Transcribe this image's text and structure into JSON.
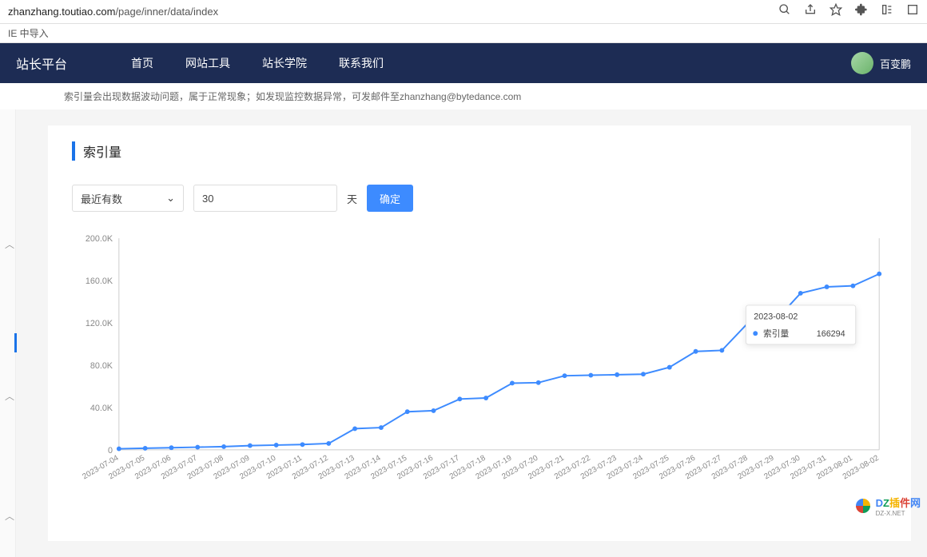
{
  "browser": {
    "url_host": "zhanzhang.toutiao.com",
    "url_path": "/page/inner/data/index"
  },
  "bookmark": {
    "label": "IE 中导入"
  },
  "nav": {
    "platform": "站长平台",
    "items": [
      "首页",
      "网站工具",
      "站长学院",
      "联系我们"
    ],
    "username": "百变鹏"
  },
  "info": {
    "text": "索引量会出现数据波动问题，属于正常现象；如发现监控数据异常，可发邮件至",
    "email": "zhanzhang@bytedance.com"
  },
  "section": {
    "title": "索引量"
  },
  "controls": {
    "select_label": "最近有数",
    "input_value": "30",
    "unit": "天",
    "confirm": "确定"
  },
  "chart": {
    "type": "line",
    "series_name": "索引量",
    "line_color": "#3d8bff",
    "background_color": "#ffffff",
    "axis_color": "#cccccc",
    "label_color": "#888888",
    "label_fontsize": 11,
    "ylim": [
      0,
      200000
    ],
    "ytick_step": 40000,
    "yticks": [
      "0",
      "40.0K",
      "80.0K",
      "120.0K",
      "160.0K",
      "200.0K"
    ],
    "marker": "circle",
    "marker_size": 3,
    "line_width": 2,
    "x_labels": [
      "2023-07-04",
      "2023-07-05",
      "2023-07-06",
      "2023-07-07",
      "2023-07-08",
      "2023-07-09",
      "2023-07-10",
      "2023-07-11",
      "2023-07-12",
      "2023-07-13",
      "2023-07-14",
      "2023-07-15",
      "2023-07-16",
      "2023-07-17",
      "2023-07-18",
      "2023-07-19",
      "2023-07-20",
      "2023-07-21",
      "2023-07-22",
      "2023-07-23",
      "2023-07-24",
      "2023-07-25",
      "2023-07-26",
      "2023-07-27",
      "2023-07-28",
      "2023-07-29",
      "2023-07-30",
      "2023-07-31",
      "2023-08-01",
      "2023-08-02"
    ],
    "values": [
      1000,
      1500,
      2000,
      2500,
      3000,
      4000,
      4500,
      5000,
      6000,
      20000,
      21000,
      36000,
      37000,
      48000,
      49000,
      63000,
      63500,
      70000,
      70500,
      71000,
      71500,
      78000,
      93000,
      94000,
      120000,
      121000,
      148000,
      154000,
      155000,
      166294
    ],
    "tooltip": {
      "date": "2023-08-02",
      "label": "索引量",
      "value": "166294"
    }
  },
  "watermark": {
    "text_parts": [
      "D",
      "Z",
      "插",
      "件",
      "网"
    ],
    "sub": "DZ-X.NET"
  }
}
